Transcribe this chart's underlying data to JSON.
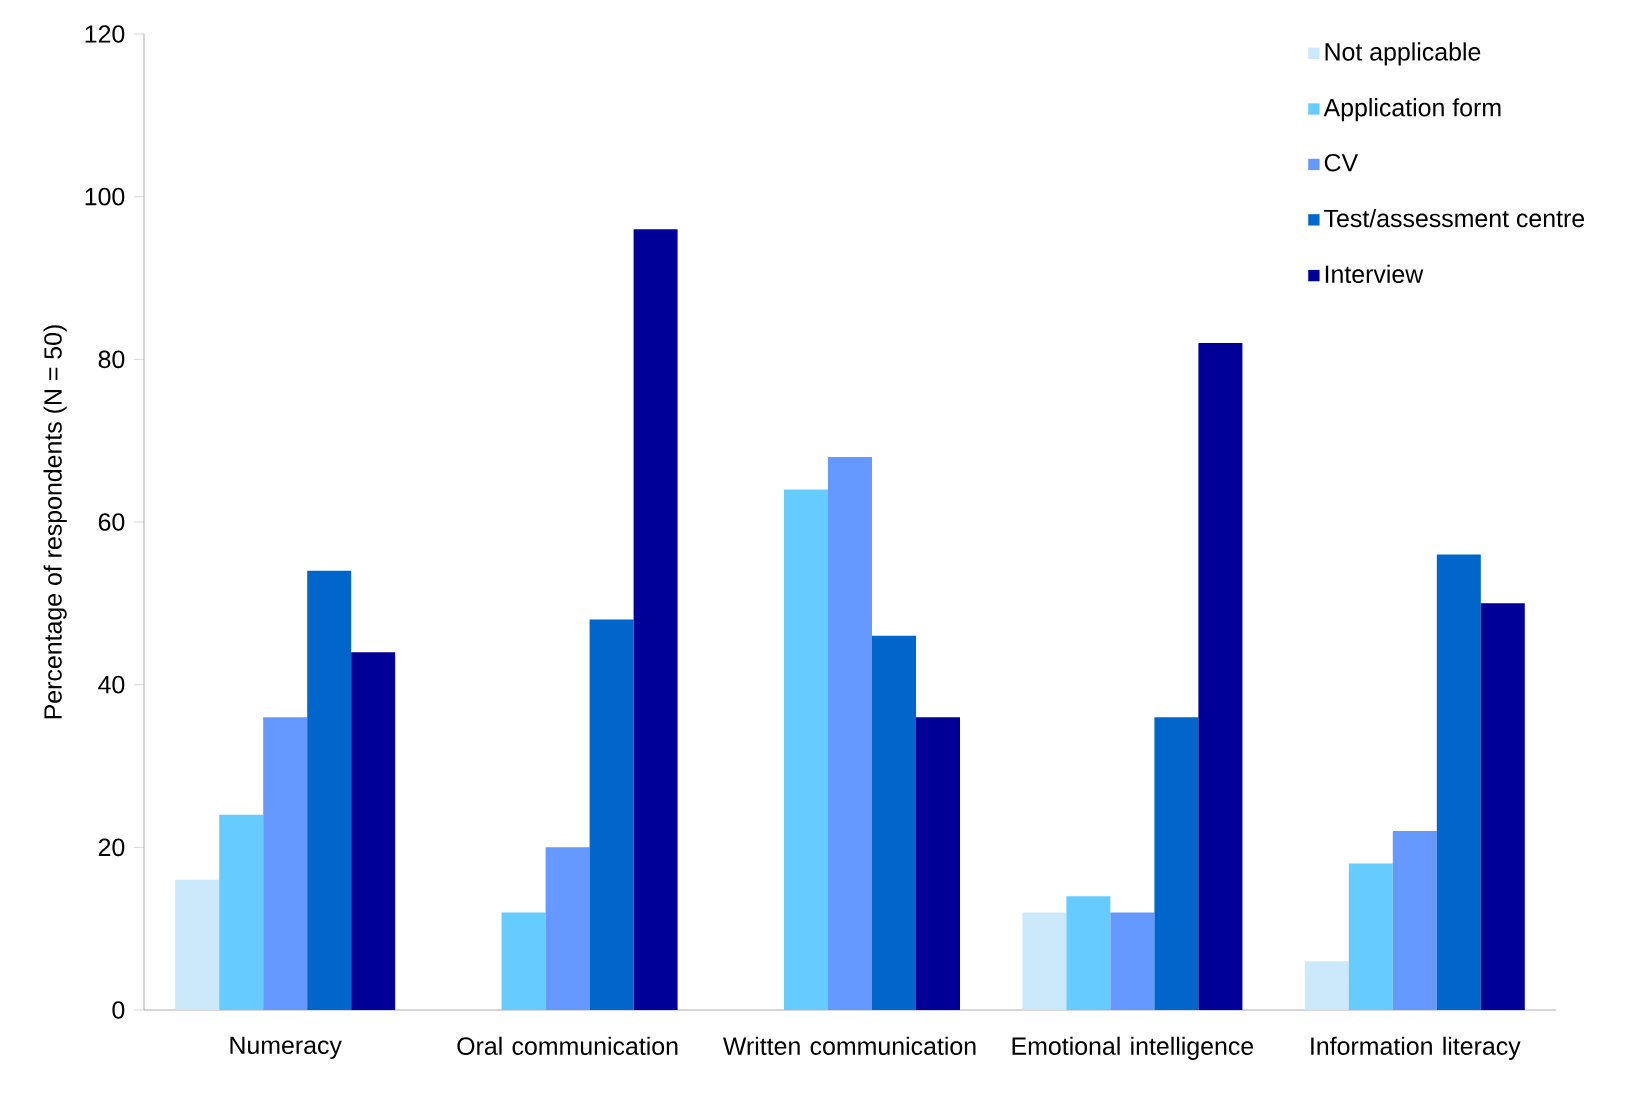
{
  "chart_data": {
    "type": "bar",
    "ylabel": "Percentage of respondents (N = 50)",
    "categories": [
      "Numeracy",
      "Oral communication",
      "Written communication",
      "Emotional intelligence",
      "Information literacy"
    ],
    "series": [
      {
        "name": "Not applicable",
        "color": "#cce9fc",
        "values": [
          16,
          0,
          0,
          12,
          6
        ]
      },
      {
        "name": "Application form",
        "color": "#66ccff",
        "values": [
          24,
          12,
          64,
          14,
          18
        ]
      },
      {
        "name": "CV",
        "color": "#6699ff",
        "values": [
          36,
          20,
          68,
          12,
          22
        ]
      },
      {
        "name": "Test/assessment centre",
        "color": "#0066cc",
        "values": [
          54,
          48,
          46,
          36,
          56
        ]
      },
      {
        "name": "Interview",
        "color": "#000099",
        "values": [
          44,
          96,
          36,
          82,
          50
        ]
      }
    ],
    "ylim": [
      0,
      120
    ],
    "yticks": [
      0,
      20,
      40,
      60,
      80,
      100,
      120
    ],
    "legend": "top right",
    "grid": false
  }
}
